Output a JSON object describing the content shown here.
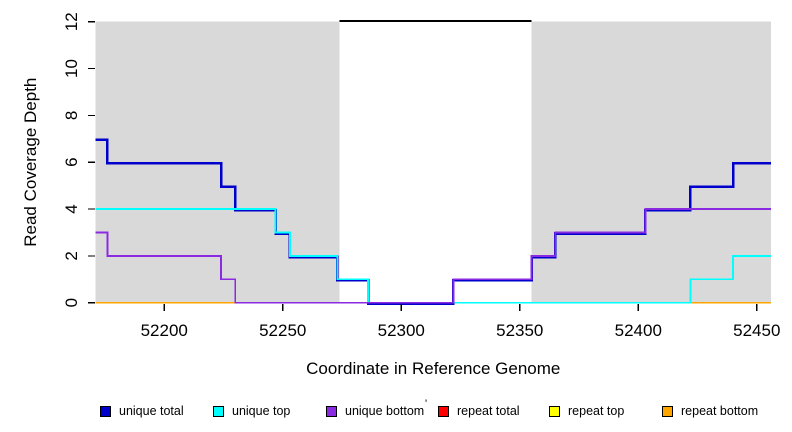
{
  "chart_data": {
    "type": "line",
    "subtype": "step-coverage-plot",
    "title": "",
    "xlabel": "Coordinate in Reference Genome",
    "ylabel": "Read Coverage Depth",
    "xlim": [
      52171,
      52456
    ],
    "ylim": [
      0,
      12
    ],
    "x_ticks": [
      52200,
      52250,
      52300,
      52350,
      52400,
      52450
    ],
    "y_ticks": [
      0,
      2,
      4,
      6,
      8,
      10,
      12
    ],
    "grid": false,
    "legend_position": "bottom",
    "shade_color": "#D9D9D9",
    "shaded_regions": [
      {
        "x0": 52171,
        "x1": 52274
      },
      {
        "x0": 52355,
        "x1": 52456
      }
    ],
    "clip_line": {
      "x0": 52274,
      "x1": 52355,
      "y": 12,
      "color": "#000000"
    },
    "x_end": 52456,
    "series": [
      {
        "name": "unique total",
        "color": "#0000CD",
        "steps": [
          [
            52171,
            7
          ],
          [
            52176,
            6
          ],
          [
            52224,
            5
          ],
          [
            52230,
            4
          ],
          [
            52247,
            3
          ],
          [
            52253,
            2
          ],
          [
            52273,
            1
          ],
          [
            52286,
            0
          ],
          [
            52322,
            1
          ],
          [
            52355,
            2
          ],
          [
            52365,
            3
          ],
          [
            52403,
            4
          ],
          [
            52422,
            5
          ],
          [
            52440,
            6
          ]
        ]
      },
      {
        "name": "unique top",
        "color": "#00FFFF",
        "steps": [
          [
            52171,
            4
          ],
          [
            52247,
            3
          ],
          [
            52253,
            2
          ],
          [
            52273,
            1
          ],
          [
            52286,
            0
          ],
          [
            52422,
            1
          ],
          [
            52440,
            2
          ]
        ]
      },
      {
        "name": "unique bottom",
        "color": "#8A2BE2",
        "steps": [
          [
            52171,
            3
          ],
          [
            52176,
            2
          ],
          [
            52224,
            1
          ],
          [
            52230,
            0
          ],
          [
            52322,
            1
          ],
          [
            52355,
            2
          ],
          [
            52365,
            3
          ],
          [
            52403,
            4
          ]
        ]
      },
      {
        "name": "repeat total",
        "color": "#FF0000",
        "steps": [
          [
            52171,
            0
          ]
        ]
      },
      {
        "name": "repeat top",
        "color": "#FFFF00",
        "steps": [
          [
            52171,
            0
          ]
        ]
      },
      {
        "name": "repeat bottom",
        "color": "#FFA500",
        "steps": [
          [
            52171,
            0
          ]
        ]
      }
    ],
    "stray_mark": "'"
  }
}
